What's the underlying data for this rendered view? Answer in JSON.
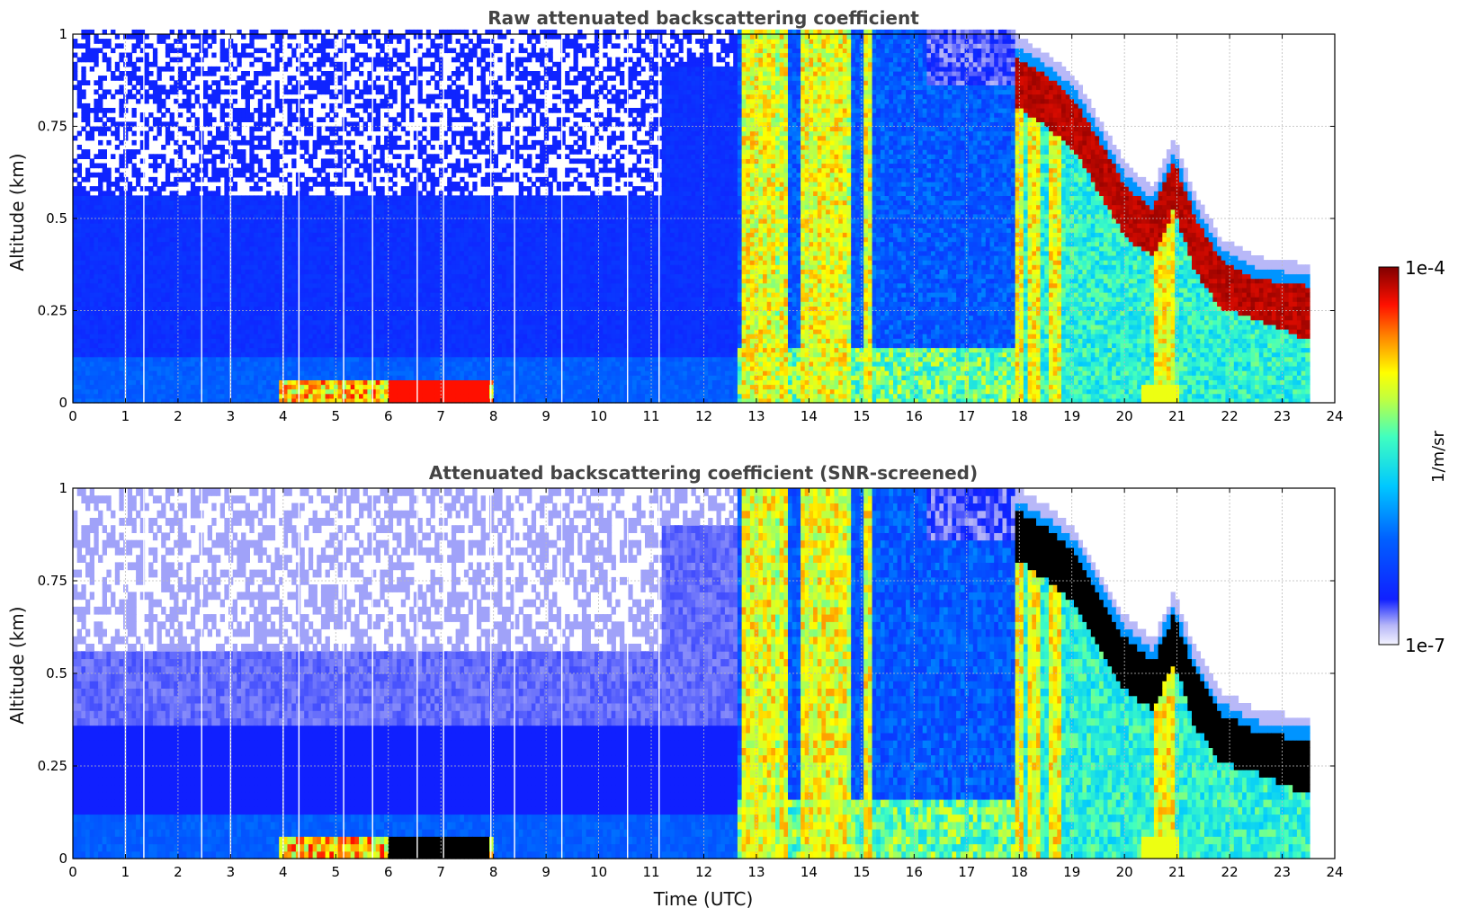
{
  "chart_data": [
    {
      "type": "heatmap",
      "title": "Raw attenuated backscattering coefficient",
      "xlabel": "",
      "ylabel": "Altitude (km)",
      "xlim": [
        0,
        24
      ],
      "ylim": [
        0,
        1
      ],
      "x_ticks": [
        "0",
        "1",
        "2",
        "3",
        "4",
        "5",
        "6",
        "7",
        "8",
        "9",
        "10",
        "11",
        "12",
        "13",
        "14",
        "15",
        "16",
        "17",
        "18",
        "19",
        "20",
        "21",
        "22",
        "23",
        "24"
      ],
      "y_ticks": [
        "0",
        "0.25",
        "0.5",
        "0.75",
        "1"
      ],
      "grid": true,
      "data_end_time": 23.5,
      "cloud_top_km": [
        [
          17.9,
          0.93
        ],
        [
          18.5,
          0.88
        ],
        [
          19.0,
          0.82
        ],
        [
          19.5,
          0.7
        ],
        [
          20.0,
          0.58
        ],
        [
          20.5,
          0.52
        ],
        [
          20.9,
          0.65
        ],
        [
          21.3,
          0.5
        ],
        [
          21.8,
          0.38
        ],
        [
          22.5,
          0.33
        ],
        [
          23.5,
          0.31
        ]
      ],
      "cloud_base_km": [
        [
          17.9,
          0.8
        ],
        [
          18.5,
          0.74
        ],
        [
          19.0,
          0.68
        ],
        [
          19.5,
          0.56
        ],
        [
          20.0,
          0.44
        ],
        [
          20.5,
          0.39
        ],
        [
          20.9,
          0.52
        ],
        [
          21.3,
          0.35
        ],
        [
          21.8,
          0.25
        ],
        [
          22.5,
          0.22
        ],
        [
          23.5,
          0.16
        ]
      ],
      "high_signal_columns_hours": [
        12.8,
        13.0,
        13.2,
        13.5,
        13.9,
        14.1,
        14.3,
        14.6,
        15.1,
        15.6,
        17.9,
        18.2,
        18.6,
        20.6,
        20.8
      ]
    },
    {
      "type": "heatmap",
      "title": "Attenuated backscattering coefficient (SNR-screened)",
      "xlabel": "Time (UTC)",
      "ylabel": "Altitude (km)",
      "xlim": [
        0,
        24
      ],
      "ylim": [
        0,
        1
      ],
      "x_ticks": [
        "0",
        "1",
        "2",
        "3",
        "4",
        "5",
        "6",
        "7",
        "8",
        "9",
        "10",
        "11",
        "12",
        "13",
        "14",
        "15",
        "16",
        "17",
        "18",
        "19",
        "20",
        "21",
        "22",
        "23",
        "24"
      ],
      "y_ticks": [
        "0",
        "0.25",
        "0.5",
        "0.75",
        "1"
      ],
      "grid": true,
      "data_end_time": 23.5,
      "screened_color": "#000000"
    }
  ],
  "colorbar": {
    "label": "1/m/sr",
    "max_label": "1e-4",
    "min_label": "1e-7",
    "colormap": [
      "#f0f0ff",
      "#b8b8f8",
      "#0010ff",
      "#0078ff",
      "#00e0ff",
      "#80ff80",
      "#ffff00",
      "#ff8000",
      "#ff0000",
      "#800000"
    ]
  }
}
